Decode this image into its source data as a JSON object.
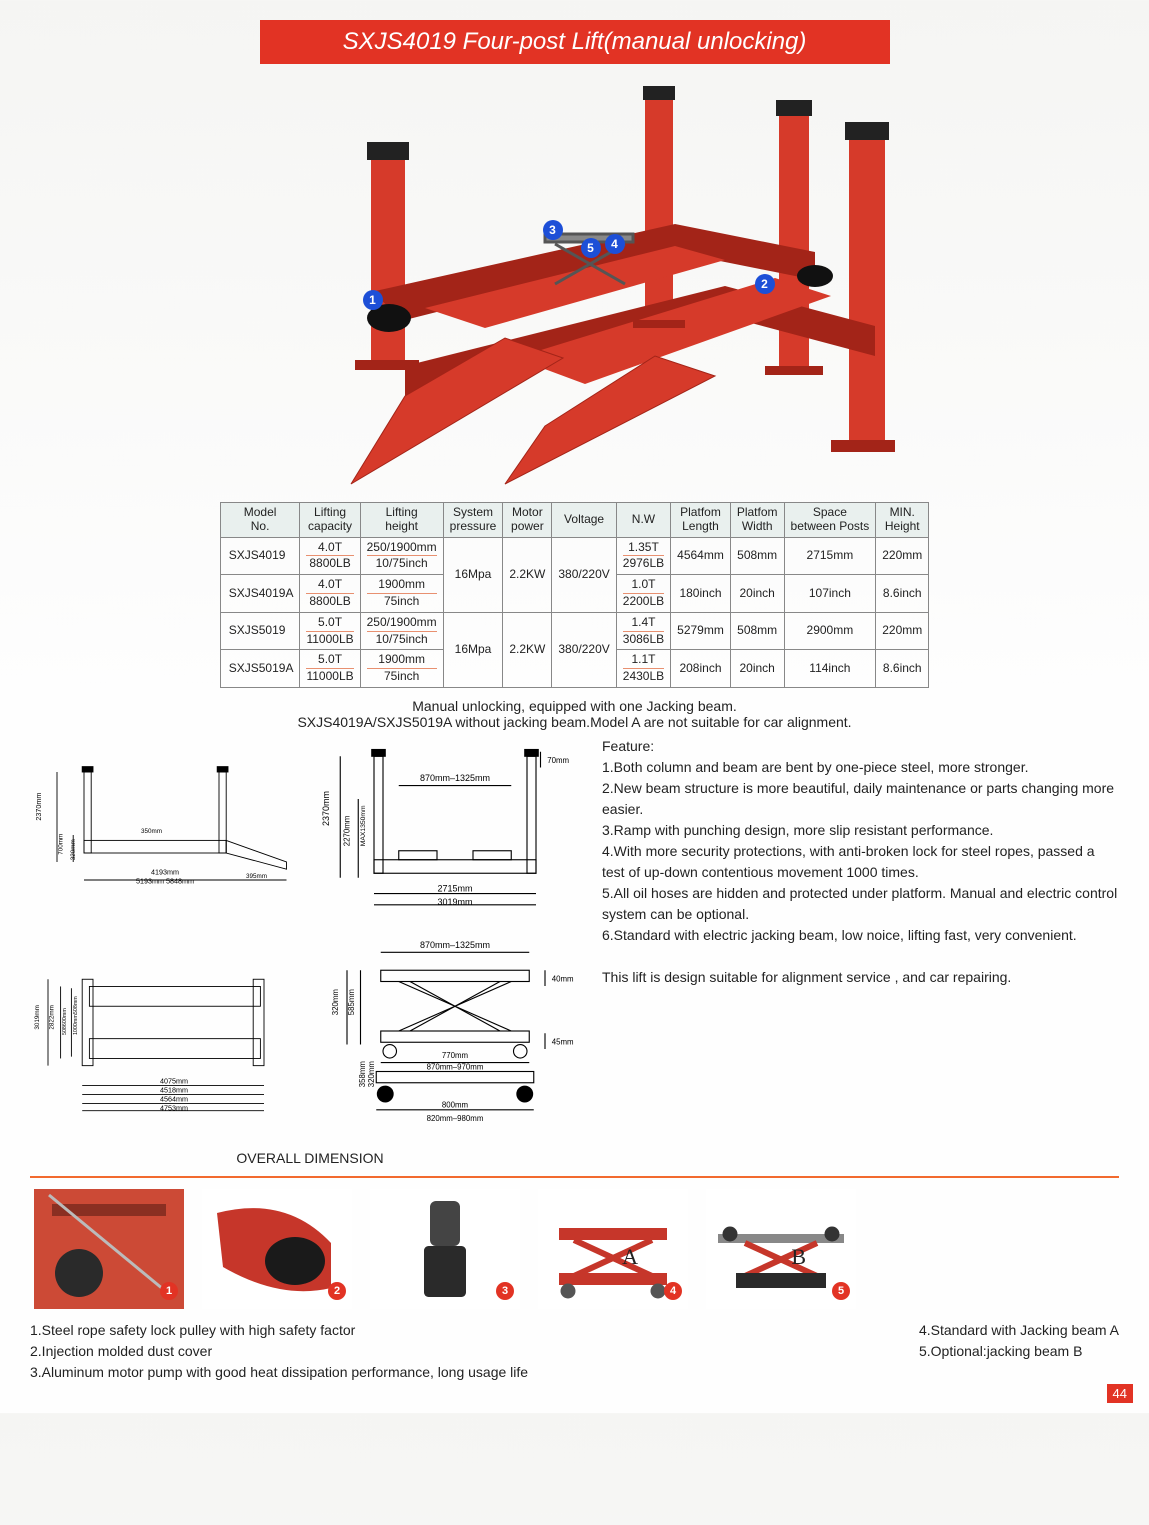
{
  "colors": {
    "accent_red": "#e23324",
    "callout_blue": "#1d4fd7",
    "table_header_bg": "#e9f0ee",
    "inch_divider": "#e89070",
    "hr": "#f26a2e",
    "lift_red": "#d63a2a",
    "lift_dark_red": "#a32418",
    "post_cap": "#222"
  },
  "title": "SXJS4019 Four-post Lift(manual unlocking)",
  "callouts": [
    "1",
    "2",
    "3",
    "4",
    "5"
  ],
  "specs": {
    "headers": [
      "Model No.",
      "Lifting capacity",
      "Lifting height",
      "System pressure",
      "Motor power",
      "Voltage",
      "N.W",
      "Platfom Length",
      "Platfom Width",
      "Space between Posts",
      "MIN. Height"
    ],
    "groups": [
      {
        "shared": {
          "pressure": "16Mpa",
          "power": "2.2KW",
          "voltage": "380/220V"
        },
        "rows": [
          {
            "model": "SXJS4019",
            "cap": [
              "4.0T",
              "8800LB"
            ],
            "height": [
              "250/1900mm",
              "10/75inch"
            ],
            "nw": [
              "1.35T",
              "2976LB"
            ],
            "plen": [
              "4564mm",
              ""
            ],
            "pwid": [
              "508mm",
              ""
            ],
            "space": [
              "2715mm",
              ""
            ],
            "minh": [
              "220mm",
              ""
            ]
          },
          {
            "model": "SXJS4019A",
            "cap": [
              "4.0T",
              "8800LB"
            ],
            "height": [
              "1900mm",
              "75inch"
            ],
            "nw": [
              "1.0T",
              "2200LB"
            ],
            "plen": [
              "",
              "180inch"
            ],
            "pwid": [
              "",
              "20inch"
            ],
            "space": [
              "",
              "107inch"
            ],
            "minh": [
              "",
              "8.6inch"
            ]
          }
        ]
      },
      {
        "shared": {
          "pressure": "16Mpa",
          "power": "2.2KW",
          "voltage": "380/220V"
        },
        "rows": [
          {
            "model": "SXJS5019",
            "cap": [
              "5.0T",
              "11000LB"
            ],
            "height": [
              "250/1900mm",
              "10/75inch"
            ],
            "nw": [
              "1.4T",
              "3086LB"
            ],
            "plen": [
              "5279mm",
              ""
            ],
            "pwid": [
              "508mm",
              ""
            ],
            "space": [
              "2900mm",
              ""
            ],
            "minh": [
              "220mm",
              ""
            ]
          },
          {
            "model": "SXJS5019A",
            "cap": [
              "5.0T",
              "11000LB"
            ],
            "height": [
              "1900mm",
              "75inch"
            ],
            "nw": [
              "1.1T",
              "2430LB"
            ],
            "plen": [
              "",
              "208inch"
            ],
            "pwid": [
              "",
              "20inch"
            ],
            "space": [
              "",
              "114inch"
            ],
            "minh": [
              "",
              "8.6inch"
            ]
          }
        ]
      }
    ]
  },
  "note_lines": [
    "Manual unlocking, equipped with one Jacking beam.",
    "SXJS4019A/SXJS5019A without jacking beam.Model A are not suitable for car alignment."
  ],
  "overall_label": "OVERALL DIMENSION",
  "dimensions": {
    "side": {
      "post_h": "2370mm",
      "run_h": "700mm",
      "clear": "320mm",
      "rise": "350mm",
      "wheelbase_top": "4193mm",
      "wheelbase_a": "5193mm",
      "wheelbase_b": "5848mm",
      "ramp_gap": "395mm"
    },
    "front": {
      "overall_h": "2370mm",
      "lift_h": "2270mm",
      "lift_min": "MAX1350mm",
      "span": "870mm–1325mm",
      "inner": "2715mm",
      "outer": "3019mm",
      "post_top": "70mm"
    },
    "top": {
      "overall": "3019mm",
      "tracks": "2822mm",
      "outer": "508600mm",
      "between": "1000mm508mm",
      "len1": "4075mm",
      "len2": "4518mm",
      "len3": "4564mm",
      "len4": "4753mm"
    },
    "jack": {
      "span": "870mm–1325mm",
      "h1": "320mm",
      "h2": "585mm",
      "top": "770mm",
      "mid": "870mm–970mm",
      "bot": "800mm",
      "foot": "820mm–980mm",
      "lift": "358mm",
      "drop": "320mm",
      "side": "40mm",
      "stroke": "45mm"
    }
  },
  "features": {
    "heading": "Feature:",
    "items": [
      "Both column and beam are bent by one-piece steel, more stronger.",
      "New beam structure is more beautiful, daily maintenance or parts changing more easier.",
      "Ramp with punching design, more slip resistant performance.",
      "With more security protections, with anti-broken lock for steel ropes, passed a test of up-down contentious movement 1000 times.",
      "All oil hoses are hidden and protected under platform. Manual and electric control system can be optional.",
      "Standard with electric jacking beam, low noice, lifting fast, very convenient."
    ],
    "tail": "This lift is design suitable for alignment service , and car repairing."
  },
  "thumbs": [
    {
      "n": "1",
      "letter": ""
    },
    {
      "n": "2",
      "letter": ""
    },
    {
      "n": "3",
      "letter": ""
    },
    {
      "n": "4",
      "letter": "A"
    },
    {
      "n": "5",
      "letter": "B"
    }
  ],
  "footnotes_left": [
    "1.Steel rope safety lock pulley with high safety factor",
    "2.Injection molded dust cover",
    "3.Aluminum motor pump with good heat dissipation performance, long usage life"
  ],
  "footnotes_right": [
    "4.Standard with Jacking beam A",
    "5.Optional:jacking beam B"
  ],
  "page_number": "44"
}
